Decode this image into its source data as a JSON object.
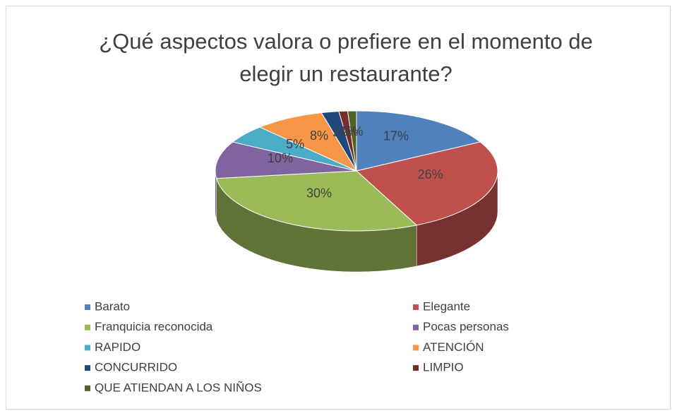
{
  "chart_data": {
    "type": "pie",
    "title": "¿Qué aspectos valora o prefiere en el momento de elegir un restaurante?",
    "categories": [
      "Barato",
      "Elegante",
      "Franquicia reconocida",
      "Pocas personas",
      "RAPIDO",
      "ATENCIÓN",
      "CONCURRIDO",
      "LIMPIO",
      "QUE ATIENDAN A LOS NIÑOS"
    ],
    "values": [
      17,
      26,
      30,
      10,
      5,
      8,
      2,
      1,
      1
    ],
    "value_labels": [
      "17%",
      "26%",
      "30%",
      "10%",
      "5%",
      "8%",
      "2%",
      "1%",
      "1%"
    ],
    "colors": [
      "#4f81bd",
      "#c0504d",
      "#9bbb59",
      "#8064a2",
      "#4bacc6",
      "#f79646",
      "#1f497d",
      "#772c2a",
      "#4f6228"
    ],
    "legend": "bottom"
  }
}
